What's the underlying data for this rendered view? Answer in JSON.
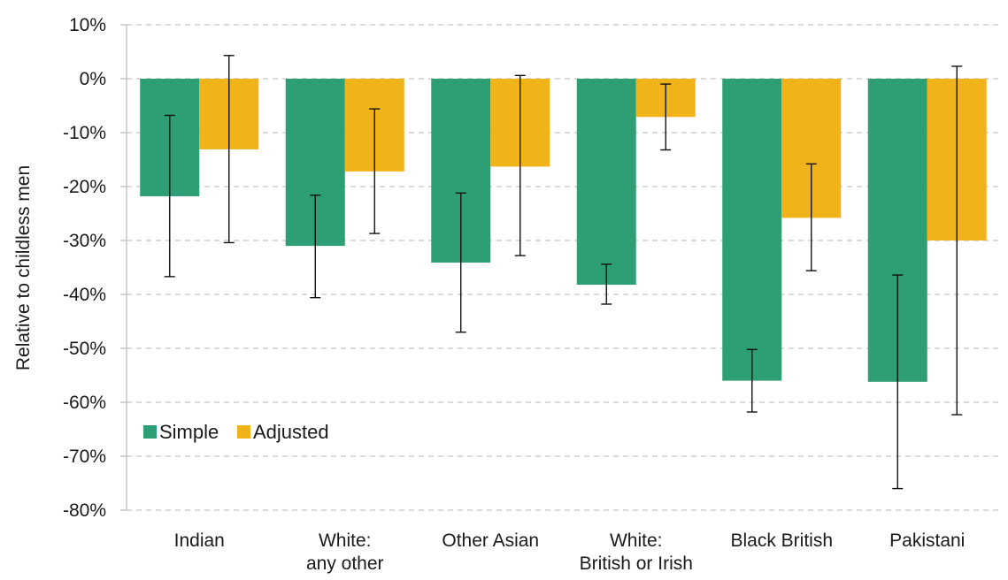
{
  "chart_data": {
    "type": "bar",
    "ylabel": "Relative to childless men",
    "ylim": [
      -80,
      10
    ],
    "y_ticks": [
      10,
      0,
      -10,
      -20,
      -30,
      -40,
      -50,
      -60,
      -70,
      -80
    ],
    "y_tick_labels": [
      "10%",
      "0%",
      "-10%",
      "-20%",
      "-30%",
      "-40%",
      "-50%",
      "-60%",
      "-70%",
      "-80%"
    ],
    "grid": true,
    "legend_position": "bottom-left",
    "categories": [
      [
        "Indian"
      ],
      [
        "White:",
        "any other"
      ],
      [
        "Other Asian"
      ],
      [
        "White:",
        "British or Irish"
      ],
      [
        "Black British"
      ],
      [
        "Pakistani"
      ]
    ],
    "series": [
      {
        "name": "Simple",
        "color": "#2e9e74",
        "values": [
          -21.8,
          -31.0,
          -34.1,
          -38.2,
          -56.0,
          -56.2
        ],
        "error_low": [
          -36.7,
          -40.6,
          -47.0,
          -41.8,
          -61.8,
          -76.0
        ],
        "error_high": [
          -6.8,
          -21.6,
          -21.2,
          -34.4,
          -50.2,
          -36.4
        ]
      },
      {
        "name": "Adjusted",
        "color": "#f0b41a",
        "values": [
          -13.1,
          -17.2,
          -16.3,
          -7.1,
          -25.8,
          -30.0
        ],
        "error_low": [
          -30.4,
          -28.7,
          -32.8,
          -13.2,
          -35.6,
          -62.3
        ],
        "error_high": [
          4.3,
          -5.6,
          0.6,
          -1.0,
          -15.8,
          2.3
        ]
      }
    ]
  }
}
